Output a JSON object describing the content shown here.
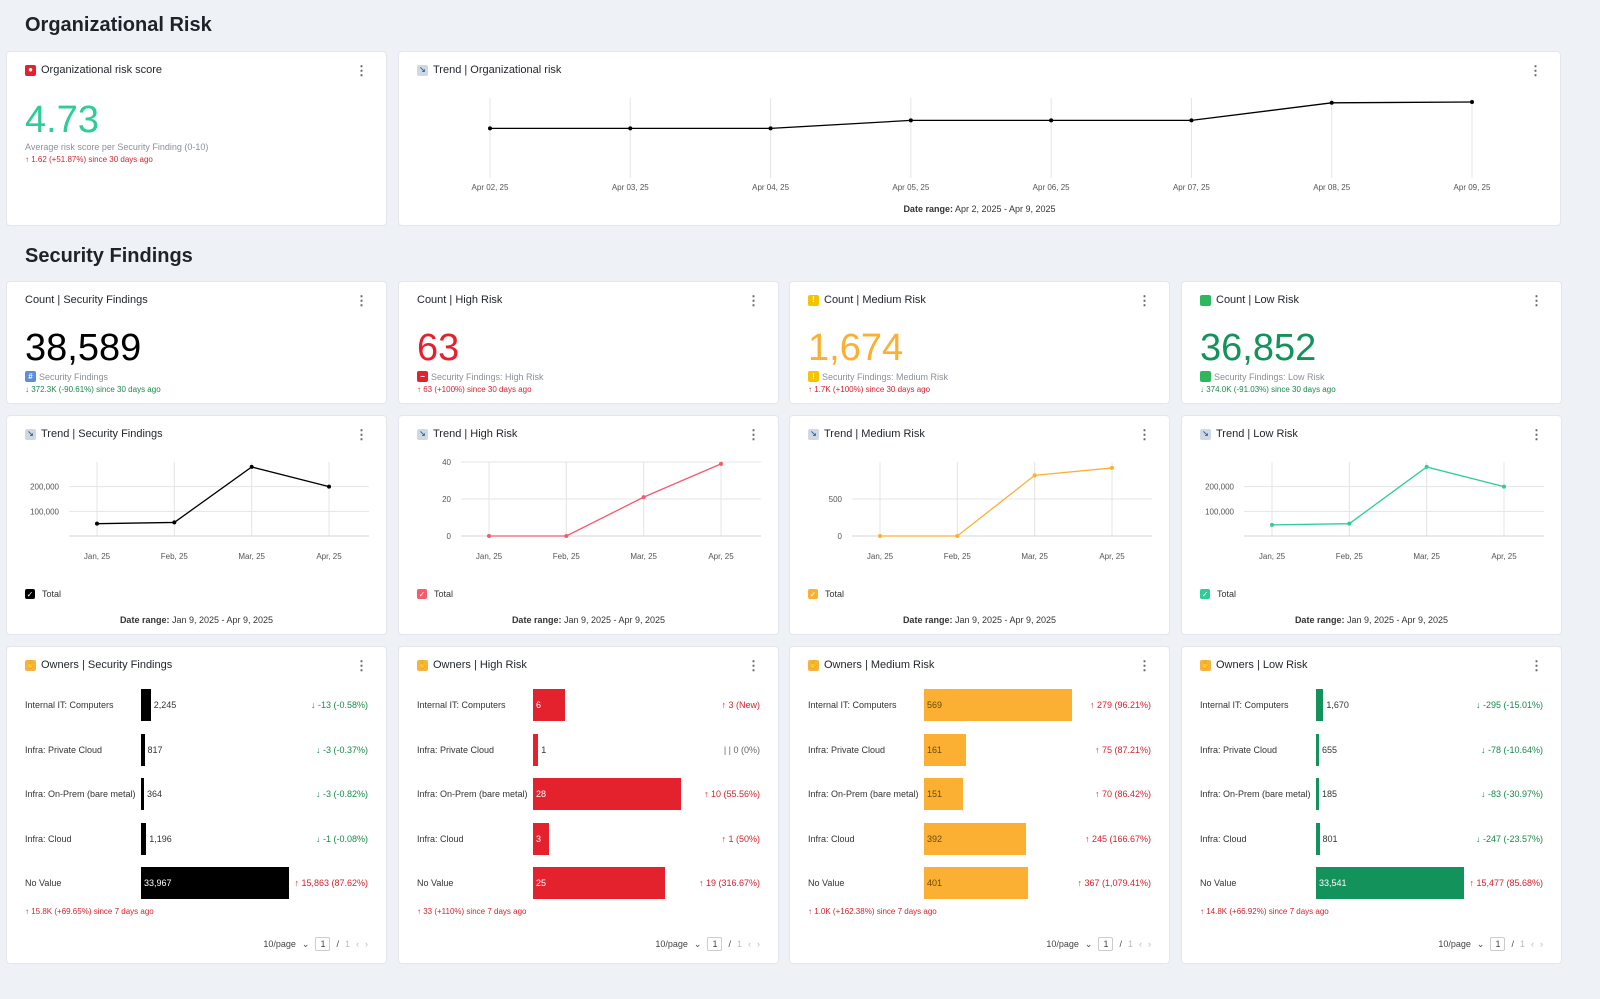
{
  "sections": {
    "org_risk": "Organizational Risk",
    "security_findings": "Security Findings"
  },
  "colors": {
    "black": "#000000",
    "red": "#e4222e",
    "orange": "#fbb033",
    "green": "#13925c",
    "line_red": "#f45b6c",
    "line_orange": "#fbb033",
    "line_green": "#2ecc96"
  },
  "risk_score": {
    "title": "Organizational risk score",
    "value": "4.73",
    "subtitle": "Average risk score per Security Finding (0-10)",
    "delta": "↑ 1.62 (+51.87%) since 30 days ago"
  },
  "org_trend": {
    "title": "Trend | Organizational risk",
    "date_range_label": "Date range:",
    "date_range": "Apr 2, 2025 - Apr 9, 2025",
    "chart_data": {
      "type": "line",
      "categories": [
        "Apr 02, 25",
        "Apr 03, 25",
        "Apr 04, 25",
        "Apr 05, 25",
        "Apr 06, 25",
        "Apr 07, 25",
        "Apr 08, 25",
        "Apr 09, 25"
      ],
      "values": [
        3.1,
        3.1,
        3.1,
        3.6,
        3.6,
        3.6,
        4.7,
        4.75
      ],
      "ylim": [
        0,
        5
      ]
    }
  },
  "counts": [
    {
      "title": "Count | Security Findings",
      "icon": "hash-icon",
      "value": "38,589",
      "subtitle": "Security Findings",
      "delta": "↓ 372.3K (-90.61%) since 30 days ago",
      "color": "#000000",
      "delta_dir": "green"
    },
    {
      "title": "Count | High Risk",
      "icon": "no-entry-icon",
      "value": "63",
      "subtitle": "Security Findings: High Risk",
      "delta": "↑ 63 (+100%) since 30 days ago",
      "color": "#e4222e",
      "delta_dir": "red"
    },
    {
      "title": "Count | Medium Risk",
      "icon": "warning-icon",
      "value": "1,674",
      "subtitle": "Security Findings: Medium Risk",
      "delta": "↑ 1.7K (+100%) since 30 days ago",
      "color": "#fbb033",
      "delta_dir": "red"
    },
    {
      "title": "Count | Low Risk",
      "icon": "green-square-icon",
      "value": "36,852",
      "subtitle": "Security Findings: Low Risk",
      "delta": "↓ 374.0K (-91.03%) since 30 days ago",
      "color": "#13925c",
      "delta_dir": "green"
    }
  ],
  "trends": [
    {
      "title": "Trend | Security Findings",
      "legend": "Total",
      "date_range_label": "Date range:",
      "date_range": "Jan 9, 2025 - Apr 9, 2025",
      "chart_data": {
        "type": "line",
        "categories": [
          "Jan, 25",
          "Feb, 25",
          "Mar, 25",
          "Apr, 25"
        ],
        "values": [
          50000,
          55000,
          280000,
          200000
        ],
        "yticks": [
          100000,
          200000
        ],
        "ytick_labels": [
          "100,000",
          "200,000"
        ],
        "ylim": [
          0,
          300000
        ],
        "color": "#000000"
      }
    },
    {
      "title": "Trend | High Risk",
      "legend": "Total",
      "date_range_label": "Date range:",
      "date_range": "Jan 9, 2025 - Apr 9, 2025",
      "chart_data": {
        "type": "line",
        "categories": [
          "Jan, 25",
          "Feb, 25",
          "Mar, 25",
          "Apr, 25"
        ],
        "values": [
          0,
          0,
          21,
          39
        ],
        "yticks": [
          0,
          20,
          40
        ],
        "ytick_labels": [
          "0",
          "20",
          "40"
        ],
        "ylim": [
          0,
          40
        ],
        "color": "#f45b6c"
      }
    },
    {
      "title": "Trend | Medium Risk",
      "legend": "Total",
      "date_range_label": "Date range:",
      "date_range": "Jan 9, 2025 - Apr 9, 2025",
      "chart_data": {
        "type": "line",
        "categories": [
          "Jan, 25",
          "Feb, 25",
          "Mar, 25",
          "Apr, 25"
        ],
        "values": [
          0,
          0,
          820,
          920
        ],
        "yticks": [
          0,
          500
        ],
        "ytick_labels": [
          "0",
          "500"
        ],
        "ylim": [
          0,
          1000
        ],
        "color": "#fbb033"
      }
    },
    {
      "title": "Trend | Low Risk",
      "legend": "Total",
      "date_range_label": "Date range:",
      "date_range": "Jan 9, 2025 - Apr 9, 2025",
      "chart_data": {
        "type": "line",
        "categories": [
          "Jan, 25",
          "Feb, 25",
          "Mar, 25",
          "Apr, 25"
        ],
        "values": [
          45000,
          50000,
          280000,
          200000
        ],
        "yticks": [
          100000,
          200000
        ],
        "ytick_labels": [
          "100,000",
          "200,000"
        ],
        "ylim": [
          0,
          300000
        ],
        "color": "#2ecc96"
      }
    }
  ],
  "owners": [
    {
      "title": "Owners | Security Findings",
      "color": "#000000",
      "footer": "↑ 15.8K (+69.65%) since 7 days ago",
      "max": 33967,
      "rows": [
        {
          "label": "Internal IT: Computers",
          "value": 2245,
          "display": "2,245",
          "delta": "↓ -13 (-0.58%)",
          "dir": "green"
        },
        {
          "label": "Infra: Private Cloud",
          "value": 817,
          "display": "817",
          "delta": "↓ -3 (-0.37%)",
          "dir": "green"
        },
        {
          "label": "Infra: On-Prem (bare metal)",
          "value": 364,
          "display": "364",
          "delta": "↓ -3 (-0.82%)",
          "dir": "green"
        },
        {
          "label": "Infra: Cloud",
          "value": 1196,
          "display": "1,196",
          "delta": "↓ -1 (-0.08%)",
          "dir": "green"
        },
        {
          "label": "No Value",
          "value": 33967,
          "display": "33,967",
          "delta": "↑ 15,863 (87.62%)",
          "dir": "red"
        }
      ]
    },
    {
      "title": "Owners | High Risk",
      "color": "#e4222e",
      "footer": "↑ 33 (+110%) since 7 days ago",
      "max": 28,
      "rows": [
        {
          "label": "Internal IT: Computers",
          "value": 6,
          "display": "6",
          "delta": "↑ 3 (New)",
          "dir": "red"
        },
        {
          "label": "Infra: Private Cloud",
          "value": 1,
          "display": "1",
          "delta": "| | 0 (0%)",
          "dir": "gray"
        },
        {
          "label": "Infra: On-Prem (bare metal)",
          "value": 28,
          "display": "28",
          "delta": "↑ 10 (55.56%)",
          "dir": "red"
        },
        {
          "label": "Infra: Cloud",
          "value": 3,
          "display": "3",
          "delta": "↑ 1 (50%)",
          "dir": "red"
        },
        {
          "label": "No Value",
          "value": 25,
          "display": "25",
          "delta": "↑ 19 (316.67%)",
          "dir": "red"
        }
      ]
    },
    {
      "title": "Owners | Medium Risk",
      "color": "#fbb033",
      "footer": "↑ 1.0K (+162.38%) since 7 days ago",
      "max": 569,
      "rows": [
        {
          "label": "Internal IT: Computers",
          "value": 569,
          "display": "569",
          "delta": "↑ 279 (96.21%)",
          "dir": "red"
        },
        {
          "label": "Infra: Private Cloud",
          "value": 161,
          "display": "161",
          "delta": "↑ 75 (87.21%)",
          "dir": "red"
        },
        {
          "label": "Infra: On-Prem (bare metal)",
          "value": 151,
          "display": "151",
          "delta": "↑ 70 (86.42%)",
          "dir": "red"
        },
        {
          "label": "Infra: Cloud",
          "value": 392,
          "display": "392",
          "delta": "↑ 245 (166.67%)",
          "dir": "red"
        },
        {
          "label": "No Value",
          "value": 401,
          "display": "401",
          "delta": "↑ 367 (1,079.41%)",
          "dir": "red"
        }
      ]
    },
    {
      "title": "Owners | Low Risk",
      "color": "#13925c",
      "footer": "↑ 14.8K (+66.92%) since 7 days ago",
      "max": 33541,
      "rows": [
        {
          "label": "Internal IT: Computers",
          "value": 1670,
          "display": "1,670",
          "delta": "↓ -295 (-15.01%)",
          "dir": "green"
        },
        {
          "label": "Infra: Private Cloud",
          "value": 655,
          "display": "655",
          "delta": "↓ -78 (-10.64%)",
          "dir": "green"
        },
        {
          "label": "Infra: On-Prem (bare metal)",
          "value": 185,
          "display": "185",
          "delta": "↓ -83 (-30.97%)",
          "dir": "green"
        },
        {
          "label": "Infra: Cloud",
          "value": 801,
          "display": "801",
          "delta": "↓ -247 (-23.57%)",
          "dir": "green"
        },
        {
          "label": "No Value",
          "value": 33541,
          "display": "33,541",
          "delta": "↑ 15,477 (85.68%)",
          "dir": "red"
        }
      ]
    }
  ],
  "pager": {
    "per_page": "10/page",
    "current": "1",
    "sep": "/",
    "total": "1",
    "prev": "‹",
    "next": "›"
  }
}
